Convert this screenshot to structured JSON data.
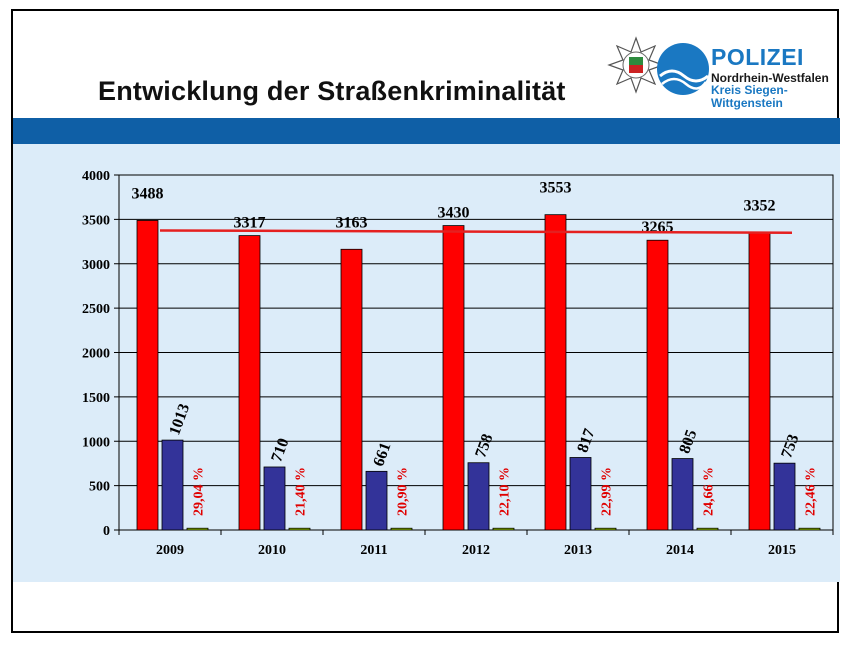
{
  "slide": {
    "title": "Entwicklung der Straßenkriminalität"
  },
  "logo": {
    "line1": "POLIZEI",
    "line2": "Nordrhein-Westfalen",
    "line3": "Kreis Siegen-Wittgenstein"
  },
  "colors": {
    "band": "#0f5fa6",
    "panel": "#dcecf9",
    "total_bars": "#ff0000",
    "solved_bars": "#333399",
    "small_bars": "#99cc00",
    "trend_line": "#e52020",
    "percent_text": "#e00000",
    "brand_blue": "#1a78c2"
  },
  "chart_data": {
    "type": "bar",
    "categories": [
      "2009",
      "2010",
      "2011",
      "2012",
      "2013",
      "2014",
      "2015"
    ],
    "series": [
      {
        "values": [
          3488,
          3317,
          3163,
          3430,
          3553,
          3265,
          3352
        ]
      },
      {
        "values": [
          1013,
          710,
          661,
          758,
          817,
          805,
          753
        ]
      },
      {
        "values": [
          20,
          20,
          20,
          20,
          20,
          20,
          20
        ]
      }
    ],
    "percent_labels": [
      "29,04 %",
      "21,40 %",
      "20,90 %",
      "22,10 %",
      "22,99 %",
      "24,66 %",
      "22,46 %"
    ],
    "trend_line": {
      "start": 3375,
      "end": 3350
    },
    "ylim": [
      0,
      4000
    ],
    "yticks": [
      "0",
      "500",
      "1000",
      "1500",
      "2000",
      "2500",
      "3000",
      "3500",
      "4000"
    ],
    "grid": true,
    "legend": "none",
    "title": "",
    "xlabel": "",
    "ylabel": ""
  }
}
